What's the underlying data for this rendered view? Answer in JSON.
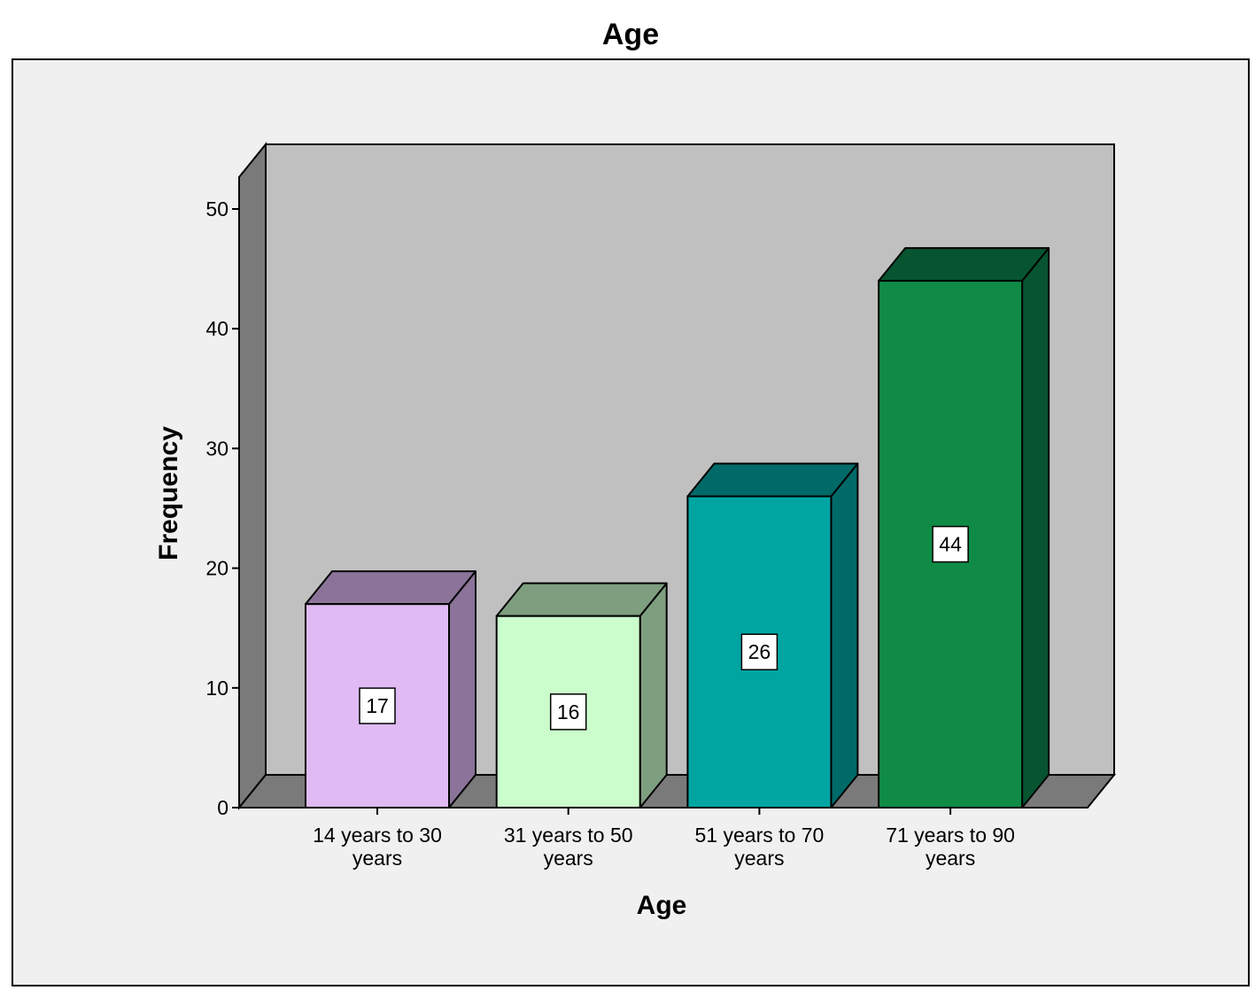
{
  "chart_data": {
    "type": "bar",
    "title": "Age",
    "xlabel": "Age",
    "ylabel": "Frequency",
    "categories": [
      "14 years to 30 years",
      "31 years to 50 years",
      "51 years to 70 years",
      "71 years to 90 years"
    ],
    "category_lines": [
      [
        "14 years to 30",
        "years"
      ],
      [
        "31 years to 50",
        "years"
      ],
      [
        "51 years to 70",
        "years"
      ],
      [
        "71 years to 90",
        "years"
      ]
    ],
    "values": [
      17,
      16,
      26,
      44
    ],
    "ylim": [
      0,
      50
    ],
    "yticks": [
      0,
      10,
      20,
      30,
      40,
      50
    ],
    "grid": false,
    "legend": "none",
    "style": "3d",
    "colors": {
      "front": [
        "#dfbaf3",
        "#cbfccb",
        "#00a5a2",
        "#0f8b46"
      ],
      "side": [
        "#8b7399",
        "#7e9e80",
        "#006a69",
        "#075430"
      ],
      "top": [
        "#8b7399",
        "#7e9e80",
        "#006a69",
        "#075430"
      ],
      "outer_background": "#f0f0f0",
      "plot_wall": "#c0c0c0",
      "wall_side": "#7a7a7a"
    }
  }
}
